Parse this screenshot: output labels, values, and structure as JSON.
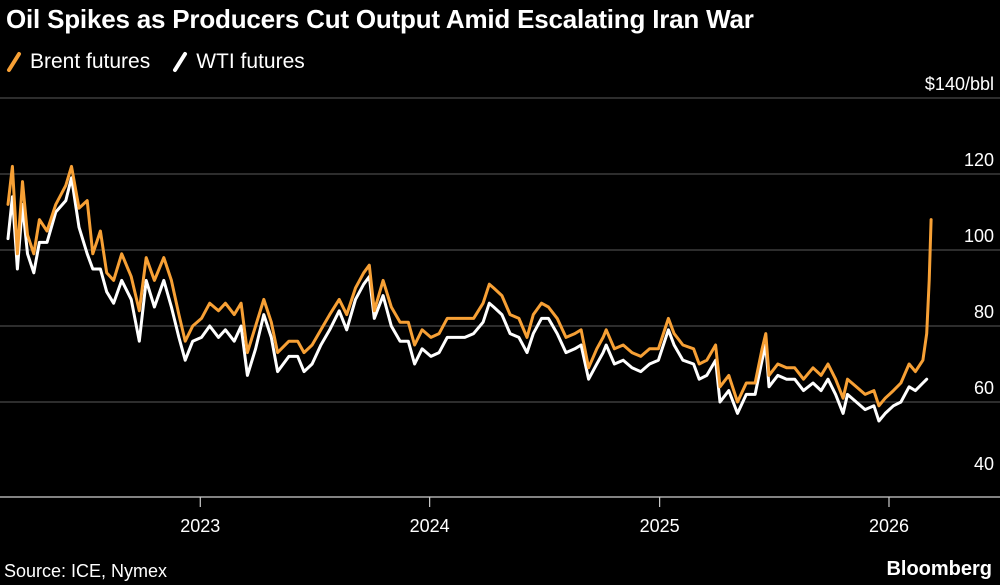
{
  "header": {
    "title": "Oil Spikes as Producers Cut Output Amid Escalating Iran War"
  },
  "legend": [
    {
      "label": "Brent futures",
      "color": "#f7a035"
    },
    {
      "label": "WTI futures",
      "color": "#ffffff"
    }
  ],
  "footer": {
    "source": "Source: ICE, Nymex",
    "brand": "Bloomberg"
  },
  "chart_data": {
    "type": "line",
    "title": "Oil Spikes as Producers Cut Output Amid Escalating Iran War",
    "xlabel": "",
    "ylabel": "",
    "unit_label": "$140/bbl",
    "ylim": [
      40,
      140
    ],
    "yticks": [
      40,
      60,
      80,
      100,
      120,
      140
    ],
    "ytick_labels": [
      "40",
      "60",
      "80",
      "100",
      "120",
      "$140/bbl"
    ],
    "xlim": [
      "2022-03-01",
      "2026-03-20"
    ],
    "xticks": [
      "2023-01-01",
      "2024-01-01",
      "2025-01-01",
      "2026-01-01"
    ],
    "xtick_labels": [
      "2023",
      "2024",
      "2025",
      "2026"
    ],
    "grid": "horizontal",
    "legend_position": "top-left",
    "series": [
      {
        "name": "Brent futures",
        "color": "#f7a035",
        "points": [
          [
            "2022-03-01",
            112
          ],
          [
            "2022-03-08",
            122
          ],
          [
            "2022-03-16",
            99
          ],
          [
            "2022-03-24",
            118
          ],
          [
            "2022-04-01",
            104
          ],
          [
            "2022-04-11",
            99
          ],
          [
            "2022-04-20",
            108
          ],
          [
            "2022-05-02",
            105
          ],
          [
            "2022-05-16",
            112
          ],
          [
            "2022-06-01",
            117
          ],
          [
            "2022-06-10",
            122
          ],
          [
            "2022-06-22",
            111
          ],
          [
            "2022-07-05",
            113
          ],
          [
            "2022-07-14",
            99
          ],
          [
            "2022-07-26",
            105
          ],
          [
            "2022-08-05",
            94
          ],
          [
            "2022-08-16",
            92
          ],
          [
            "2022-08-29",
            99
          ],
          [
            "2022-09-13",
            93
          ],
          [
            "2022-09-26",
            84
          ],
          [
            "2022-10-07",
            98
          ],
          [
            "2022-10-20",
            92
          ],
          [
            "2022-11-04",
            98
          ],
          [
            "2022-11-16",
            92
          ],
          [
            "2022-11-28",
            83
          ],
          [
            "2022-12-08",
            76
          ],
          [
            "2022-12-20",
            80
          ],
          [
            "2023-01-03",
            82
          ],
          [
            "2023-01-16",
            86
          ],
          [
            "2023-01-30",
            84
          ],
          [
            "2023-02-10",
            86
          ],
          [
            "2023-02-24",
            83
          ],
          [
            "2023-03-07",
            86
          ],
          [
            "2023-03-17",
            73
          ],
          [
            "2023-03-30",
            80
          ],
          [
            "2023-04-12",
            87
          ],
          [
            "2023-04-24",
            81
          ],
          [
            "2023-05-04",
            73
          ],
          [
            "2023-05-22",
            76
          ],
          [
            "2023-06-05",
            76
          ],
          [
            "2023-06-15",
            73
          ],
          [
            "2023-06-28",
            75
          ],
          [
            "2023-07-12",
            79
          ],
          [
            "2023-07-26",
            83
          ],
          [
            "2023-08-10",
            87
          ],
          [
            "2023-08-22",
            83
          ],
          [
            "2023-09-05",
            90
          ],
          [
            "2023-09-18",
            94
          ],
          [
            "2023-09-27",
            96
          ],
          [
            "2023-10-05",
            84
          ],
          [
            "2023-10-19",
            92
          ],
          [
            "2023-11-01",
            85
          ],
          [
            "2023-11-15",
            81
          ],
          [
            "2023-11-28",
            81
          ],
          [
            "2023-12-08",
            75
          ],
          [
            "2023-12-20",
            79
          ],
          [
            "2024-01-03",
            77
          ],
          [
            "2024-01-16",
            78
          ],
          [
            "2024-01-29",
            82
          ],
          [
            "2024-02-12",
            82
          ],
          [
            "2024-02-26",
            82
          ],
          [
            "2024-03-11",
            82
          ],
          [
            "2024-03-26",
            86
          ],
          [
            "2024-04-05",
            91
          ],
          [
            "2024-04-12",
            90
          ],
          [
            "2024-04-25",
            88
          ],
          [
            "2024-05-08",
            83
          ],
          [
            "2024-05-22",
            82
          ],
          [
            "2024-06-04",
            77
          ],
          [
            "2024-06-14",
            83
          ],
          [
            "2024-06-27",
            86
          ],
          [
            "2024-07-08",
            85
          ],
          [
            "2024-07-22",
            82
          ],
          [
            "2024-08-05",
            77
          ],
          [
            "2024-08-19",
            78
          ],
          [
            "2024-08-29",
            79
          ],
          [
            "2024-09-10",
            69
          ],
          [
            "2024-09-23",
            74
          ],
          [
            "2024-10-03",
            77
          ],
          [
            "2024-10-08",
            79
          ],
          [
            "2024-10-21",
            74
          ],
          [
            "2024-11-04",
            75
          ],
          [
            "2024-11-18",
            73
          ],
          [
            "2024-12-02",
            72
          ],
          [
            "2024-12-16",
            74
          ],
          [
            "2024-12-30",
            74
          ],
          [
            "2025-01-15",
            82
          ],
          [
            "2025-01-24",
            78
          ],
          [
            "2025-02-07",
            75
          ],
          [
            "2025-02-24",
            74
          ],
          [
            "2025-03-05",
            70
          ],
          [
            "2025-03-17",
            71
          ],
          [
            "2025-03-31",
            75
          ],
          [
            "2025-04-07",
            64
          ],
          [
            "2025-04-21",
            67
          ],
          [
            "2025-05-05",
            60
          ],
          [
            "2025-05-19",
            65
          ],
          [
            "2025-06-02",
            65
          ],
          [
            "2025-06-13",
            74
          ],
          [
            "2025-06-19",
            78
          ],
          [
            "2025-06-24",
            67
          ],
          [
            "2025-07-08",
            70
          ],
          [
            "2025-07-22",
            69
          ],
          [
            "2025-08-04",
            69
          ],
          [
            "2025-08-18",
            66
          ],
          [
            "2025-09-02",
            69
          ],
          [
            "2025-09-15",
            67
          ],
          [
            "2025-09-26",
            70
          ],
          [
            "2025-10-08",
            66
          ],
          [
            "2025-10-20",
            61
          ],
          [
            "2025-10-27",
            66
          ],
          [
            "2025-11-10",
            64
          ],
          [
            "2025-11-24",
            62
          ],
          [
            "2025-12-08",
            63
          ],
          [
            "2025-12-16",
            59
          ],
          [
            "2025-12-26",
            61
          ],
          [
            "2026-01-08",
            63
          ],
          [
            "2026-01-20",
            65
          ],
          [
            "2026-02-02",
            70
          ],
          [
            "2026-02-12",
            68
          ],
          [
            "2026-02-24",
            71
          ],
          [
            "2026-03-02",
            78
          ],
          [
            "2026-03-06",
            92
          ],
          [
            "2026-03-09",
            108
          ]
        ]
      },
      {
        "name": "WTI futures",
        "color": "#ffffff",
        "points": [
          [
            "2022-03-01",
            103
          ],
          [
            "2022-03-08",
            114
          ],
          [
            "2022-03-16",
            95
          ],
          [
            "2022-03-24",
            112
          ],
          [
            "2022-04-01",
            99
          ],
          [
            "2022-04-11",
            94
          ],
          [
            "2022-04-20",
            102
          ],
          [
            "2022-05-02",
            102
          ],
          [
            "2022-05-16",
            110
          ],
          [
            "2022-06-01",
            113
          ],
          [
            "2022-06-10",
            119
          ],
          [
            "2022-06-22",
            106
          ],
          [
            "2022-07-05",
            99
          ],
          [
            "2022-07-14",
            95
          ],
          [
            "2022-07-26",
            95
          ],
          [
            "2022-08-05",
            89
          ],
          [
            "2022-08-16",
            86
          ],
          [
            "2022-08-29",
            92
          ],
          [
            "2022-09-13",
            87
          ],
          [
            "2022-09-26",
            76
          ],
          [
            "2022-10-07",
            92
          ],
          [
            "2022-10-20",
            85
          ],
          [
            "2022-11-04",
            92
          ],
          [
            "2022-11-16",
            85
          ],
          [
            "2022-11-28",
            77
          ],
          [
            "2022-12-08",
            71
          ],
          [
            "2022-12-20",
            76
          ],
          [
            "2023-01-03",
            77
          ],
          [
            "2023-01-16",
            80
          ],
          [
            "2023-01-30",
            77
          ],
          [
            "2023-02-10",
            79
          ],
          [
            "2023-02-24",
            76
          ],
          [
            "2023-03-07",
            80
          ],
          [
            "2023-03-17",
            67
          ],
          [
            "2023-03-30",
            74
          ],
          [
            "2023-04-12",
            83
          ],
          [
            "2023-04-24",
            77
          ],
          [
            "2023-05-04",
            68
          ],
          [
            "2023-05-22",
            72
          ],
          [
            "2023-06-05",
            72
          ],
          [
            "2023-06-15",
            68
          ],
          [
            "2023-06-28",
            70
          ],
          [
            "2023-07-12",
            75
          ],
          [
            "2023-07-26",
            79
          ],
          [
            "2023-08-10",
            84
          ],
          [
            "2023-08-22",
            79
          ],
          [
            "2023-09-05",
            87
          ],
          [
            "2023-09-18",
            91
          ],
          [
            "2023-09-27",
            93
          ],
          [
            "2023-10-05",
            82
          ],
          [
            "2023-10-19",
            88
          ],
          [
            "2023-11-01",
            80
          ],
          [
            "2023-11-15",
            76
          ],
          [
            "2023-11-28",
            76
          ],
          [
            "2023-12-08",
            70
          ],
          [
            "2023-12-20",
            74
          ],
          [
            "2024-01-03",
            72
          ],
          [
            "2024-01-16",
            73
          ],
          [
            "2024-01-29",
            77
          ],
          [
            "2024-02-12",
            77
          ],
          [
            "2024-02-26",
            77
          ],
          [
            "2024-03-11",
            78
          ],
          [
            "2024-03-26",
            81
          ],
          [
            "2024-04-05",
            86
          ],
          [
            "2024-04-12",
            85
          ],
          [
            "2024-04-25",
            83
          ],
          [
            "2024-05-08",
            78
          ],
          [
            "2024-05-22",
            77
          ],
          [
            "2024-06-04",
            73
          ],
          [
            "2024-06-14",
            78
          ],
          [
            "2024-06-27",
            82
          ],
          [
            "2024-07-08",
            82
          ],
          [
            "2024-07-22",
            78
          ],
          [
            "2024-08-05",
            73
          ],
          [
            "2024-08-19",
            74
          ],
          [
            "2024-08-29",
            75
          ],
          [
            "2024-09-10",
            66
          ],
          [
            "2024-09-23",
            70
          ],
          [
            "2024-10-03",
            73
          ],
          [
            "2024-10-08",
            75
          ],
          [
            "2024-10-21",
            70
          ],
          [
            "2024-11-04",
            71
          ],
          [
            "2024-11-18",
            69
          ],
          [
            "2024-12-02",
            68
          ],
          [
            "2024-12-16",
            70
          ],
          [
            "2024-12-30",
            71
          ],
          [
            "2025-01-15",
            79
          ],
          [
            "2025-01-24",
            75
          ],
          [
            "2025-02-07",
            71
          ],
          [
            "2025-02-24",
            70
          ],
          [
            "2025-03-05",
            66
          ],
          [
            "2025-03-17",
            67
          ],
          [
            "2025-03-31",
            71
          ],
          [
            "2025-04-07",
            60
          ],
          [
            "2025-04-21",
            63
          ],
          [
            "2025-05-05",
            57
          ],
          [
            "2025-05-19",
            62
          ],
          [
            "2025-06-02",
            62
          ],
          [
            "2025-06-13",
            71
          ],
          [
            "2025-06-19",
            75
          ],
          [
            "2025-06-24",
            64
          ],
          [
            "2025-07-08",
            67
          ],
          [
            "2025-07-22",
            66
          ],
          [
            "2025-08-04",
            66
          ],
          [
            "2025-08-18",
            63
          ],
          [
            "2025-09-02",
            65
          ],
          [
            "2025-09-15",
            63
          ],
          [
            "2025-09-26",
            66
          ],
          [
            "2025-10-08",
            62
          ],
          [
            "2025-10-20",
            57
          ],
          [
            "2025-10-27",
            62
          ],
          [
            "2025-11-10",
            60
          ],
          [
            "2025-11-24",
            58
          ],
          [
            "2025-12-08",
            59
          ],
          [
            "2025-12-16",
            55
          ],
          [
            "2025-12-26",
            57
          ],
          [
            "2026-01-08",
            59
          ],
          [
            "2026-01-20",
            60
          ],
          [
            "2026-02-02",
            64
          ],
          [
            "2026-02-12",
            63
          ],
          [
            "2026-02-24",
            65
          ],
          [
            "2026-03-02",
            66
          ]
        ]
      }
    ]
  }
}
